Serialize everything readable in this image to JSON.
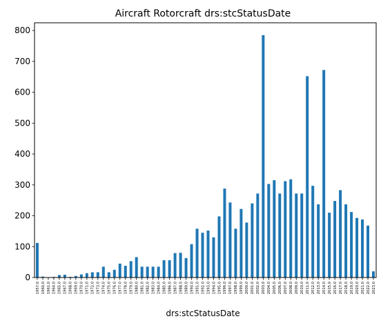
{
  "chart_data": {
    "type": "bar",
    "title": "Aircraft  Rotorcraft  drs:stcStatusDate",
    "xlabel": "drs:stcStatusDate",
    "ylabel": "",
    "ylim": [
      0,
      825
    ],
    "yticks": [
      0,
      100,
      200,
      300,
      400,
      500,
      600,
      700,
      800
    ],
    "grid": false,
    "color": "#1f77b4",
    "categories": [
      "1957.0",
      "1960.0",
      "1961.0",
      "1964.0",
      "1965.0",
      "1967.0",
      "1968.0",
      "1969.0",
      "1970.0",
      "1971.0",
      "1972.0",
      "1973.0",
      "1974.0",
      "1975.0",
      "1976.0",
      "1977.0",
      "1978.0",
      "1979.0",
      "1980.0",
      "1981.0",
      "1982.0",
      "1983.0",
      "1984.0",
      "1985.0",
      "1986.0",
      "1987.0",
      "1988.0",
      "1989.0",
      "1990.0",
      "1991.0",
      "1992.0",
      "1993.0",
      "1994.0",
      "1995.0",
      "1996.0",
      "1997.0",
      "1998.0",
      "1999.0",
      "2000.0",
      "2001.0",
      "2002.0",
      "2003.0",
      "2004.0",
      "2005.0",
      "2006.0",
      "2007.0",
      "2008.0",
      "2009.0",
      "2010.0",
      "2011.0",
      "2012.0",
      "2013.0",
      "2014.0",
      "2015.0",
      "2016.0",
      "2017.0",
      "2018.0",
      "2019.0",
      "2020.0",
      "2021.0",
      "2022.0",
      "2023.0"
    ],
    "values": [
      112,
      3,
      1,
      2,
      8,
      9,
      2,
      5,
      10,
      14,
      17,
      17,
      35,
      17,
      25,
      45,
      38,
      53,
      66,
      35,
      35,
      35,
      35,
      56,
      56,
      79,
      80,
      63,
      108,
      158,
      145,
      152,
      130,
      198,
      288,
      243,
      158,
      222,
      178,
      240,
      272,
      785,
      303,
      315,
      272,
      312,
      318,
      272,
      272,
      652,
      297,
      237,
      672,
      210,
      248,
      283,
      237,
      212,
      193,
      188,
      168,
      20
    ]
  }
}
